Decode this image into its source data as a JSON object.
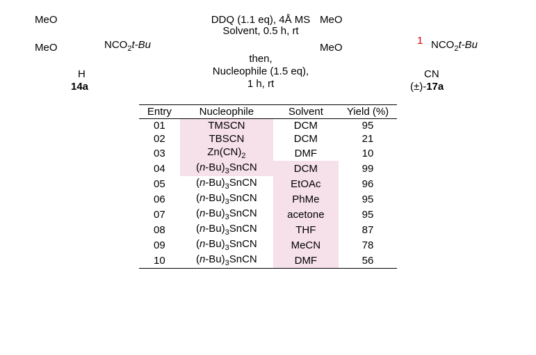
{
  "scheme": {
    "left_meo_top": "MeO",
    "left_meo_bot": "MeO",
    "left_nco": "NCO",
    "left_nco_sub": "2",
    "left_nco_tbu": "t-Bu",
    "left_h": "H",
    "left_compound": "14a",
    "cond_line1a": "DDQ (1.1 eq), 4Å MS",
    "cond_line2": "Solvent, 0.5 h, rt",
    "cond_line3": "then,",
    "cond_line4": "Nucleophile (1.5 eq),",
    "cond_line5": "1 h, rt",
    "right_meo_top": "MeO",
    "right_meo_bot": "MeO",
    "right_red1": "1",
    "right_nco": "NCO",
    "right_nco_sub": "2",
    "right_nco_tbu": "t-Bu",
    "right_cn": "CN",
    "right_compound_pm": "(±)-",
    "right_compound_num": "17a"
  },
  "table": {
    "headers": [
      "Entry",
      "Nucleophile",
      "Solvent",
      "Yield  (%)"
    ],
    "rows": [
      {
        "entry": "01",
        "nuc": "TMSCN",
        "nuc_hl": true,
        "sol": "DCM",
        "sol_hl": false,
        "yield": "95"
      },
      {
        "entry": "02",
        "nuc": "TBSCN",
        "nuc_hl": true,
        "sol": "DCM",
        "sol_hl": false,
        "yield": "21"
      },
      {
        "entry": "03",
        "nuc": "Zn(CN)<sub class='sub'>2</sub>",
        "nuc_hl": true,
        "sol": "DMF",
        "sol_hl": false,
        "yield": "10"
      },
      {
        "entry": "04",
        "nuc": "(<span class='ital'>n</span>-Bu)<sub class='sub'>3</sub>SnCN",
        "nuc_hl": true,
        "sol": "DCM",
        "sol_hl": true,
        "yield": "99"
      },
      {
        "entry": "05",
        "nuc": "(<span class='ital'>n</span>-Bu)<sub class='sub'>3</sub>SnCN",
        "nuc_hl": false,
        "sol": "EtOAc",
        "sol_hl": true,
        "yield": "96"
      },
      {
        "entry": "06",
        "nuc": "(<span class='ital'>n</span>-Bu)<sub class='sub'>3</sub>SnCN",
        "nuc_hl": false,
        "sol": "PhMe",
        "sol_hl": true,
        "yield": "95"
      },
      {
        "entry": "07",
        "nuc": "(<span class='ital'>n</span>-Bu)<sub class='sub'>3</sub>SnCN",
        "nuc_hl": false,
        "sol": "acetone",
        "sol_hl": true,
        "yield": "95"
      },
      {
        "entry": "08",
        "nuc": "(<span class='ital'>n</span>-Bu)<sub class='sub'>3</sub>SnCN",
        "nuc_hl": false,
        "sol": "THF",
        "sol_hl": true,
        "yield": "87"
      },
      {
        "entry": "09",
        "nuc": "(<span class='ital'>n</span>-Bu)<sub class='sub'>3</sub>SnCN",
        "nuc_hl": false,
        "sol": "MeCN",
        "sol_hl": true,
        "yield": "78"
      },
      {
        "entry": "10",
        "nuc": "(<span class='ital'>n</span>-Bu)<sub class='sub'>3</sub>SnCN",
        "nuc_hl": false,
        "sol": "DMF",
        "sol_hl": true,
        "yield": "56"
      }
    ]
  }
}
